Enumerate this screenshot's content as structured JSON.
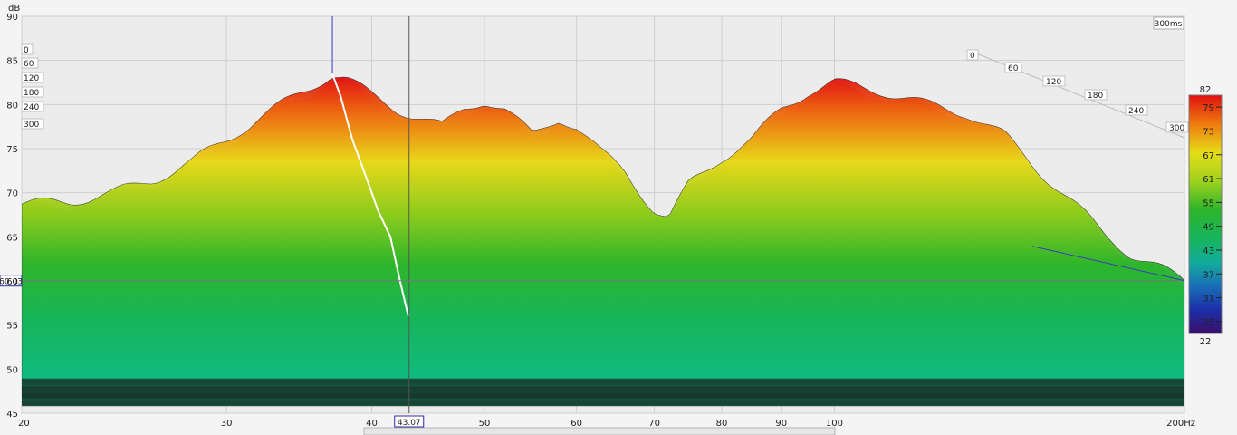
{
  "chart_data": {
    "type": "area",
    "subtype": "waterfall-3d",
    "y_unit": "dB",
    "x_unit_suffix": "Hz",
    "time_label": "300ms",
    "ylim": [
      45,
      90
    ],
    "yticks": [
      90,
      85,
      80,
      75,
      70,
      65,
      60,
      55,
      50,
      45
    ],
    "xlim": [
      20,
      200
    ],
    "x_scale": "log",
    "xticks": [
      {
        "value": 20,
        "label": "20"
      },
      {
        "value": 30,
        "label": "30"
      },
      {
        "value": 40,
        "label": "40"
      },
      {
        "value": 50,
        "label": "50"
      },
      {
        "value": 60,
        "label": "60"
      },
      {
        "value": 70,
        "label": "70"
      },
      {
        "value": 80,
        "label": "80"
      },
      {
        "value": 90,
        "label": "90"
      },
      {
        "value": 100,
        "label": "100"
      },
      {
        "value": 200,
        "label": "200Hz"
      }
    ],
    "time_ticks_left": [
      "0",
      "60",
      "120",
      "180",
      "240",
      "300"
    ],
    "time_ticks_right": [
      "0",
      "60",
      "120",
      "180",
      "240",
      "300"
    ],
    "cursor": {
      "x": 43.07,
      "y": 60.03,
      "x_label": "43.07",
      "y_label": "60.03"
    },
    "colorbar": {
      "min": 22,
      "max": 82,
      "ticks": [
        79,
        73,
        67,
        61,
        55,
        49,
        43,
        37,
        31,
        25
      ],
      "min_label": "22",
      "max_label": "82"
    },
    "front_slice": {
      "freq": [
        20,
        22,
        24,
        26,
        28,
        30,
        32,
        34,
        36,
        37,
        38,
        40,
        42,
        44,
        46,
        48,
        50,
        52,
        55,
        58,
        60,
        63,
        66,
        70,
        72,
        75,
        80,
        85,
        90,
        95,
        100,
        110,
        120,
        130,
        140,
        150,
        160,
        170,
        180,
        190,
        200
      ],
      "spl": [
        68.7,
        69,
        70,
        71.5,
        73.5,
        76,
        78.5,
        80.5,
        82.5,
        83.5,
        83,
        81,
        79.5,
        78.5,
        77.5,
        79.5,
        80.5,
        79.5,
        76.5,
        78.5,
        77.5,
        74.5,
        72.5,
        68,
        67,
        71,
        74,
        76,
        79.5,
        81.5,
        82.5,
        81.5,
        80,
        79,
        76.5,
        72.5,
        69,
        65.5,
        63,
        61.5,
        60
      ]
    },
    "peak_ridge": {
      "freq": [
        37,
        37.6,
        38.5,
        39.5,
        40.5,
        41.5,
        42.3,
        43
      ],
      "spl": [
        83.5,
        81,
        76,
        72,
        68,
        65,
        60,
        56
      ]
    }
  }
}
